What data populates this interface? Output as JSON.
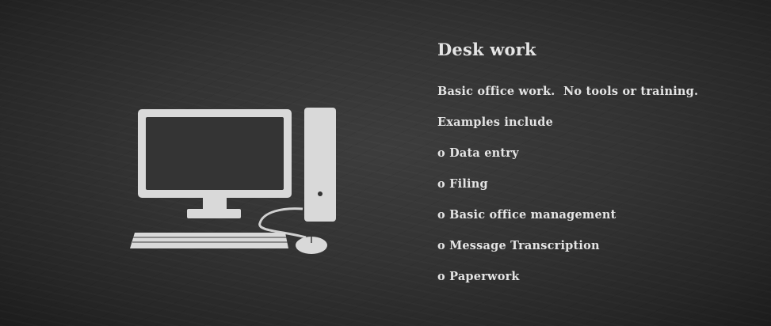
{
  "slide": {
    "heading": "Desk work",
    "intro": "Basic office work.  No tools or training.",
    "examples_heading": "Examples include",
    "examples": [
      "o Data entry",
      "o Filing",
      "o Basic office management",
      "o Message Transcription",
      "o Paperwork"
    ]
  },
  "illustration": {
    "icon": "desktop-computer-icon",
    "chalk_color": "#dcdcdc"
  },
  "colors": {
    "background": "#2e2e2e",
    "text": "#e4e4e4"
  }
}
